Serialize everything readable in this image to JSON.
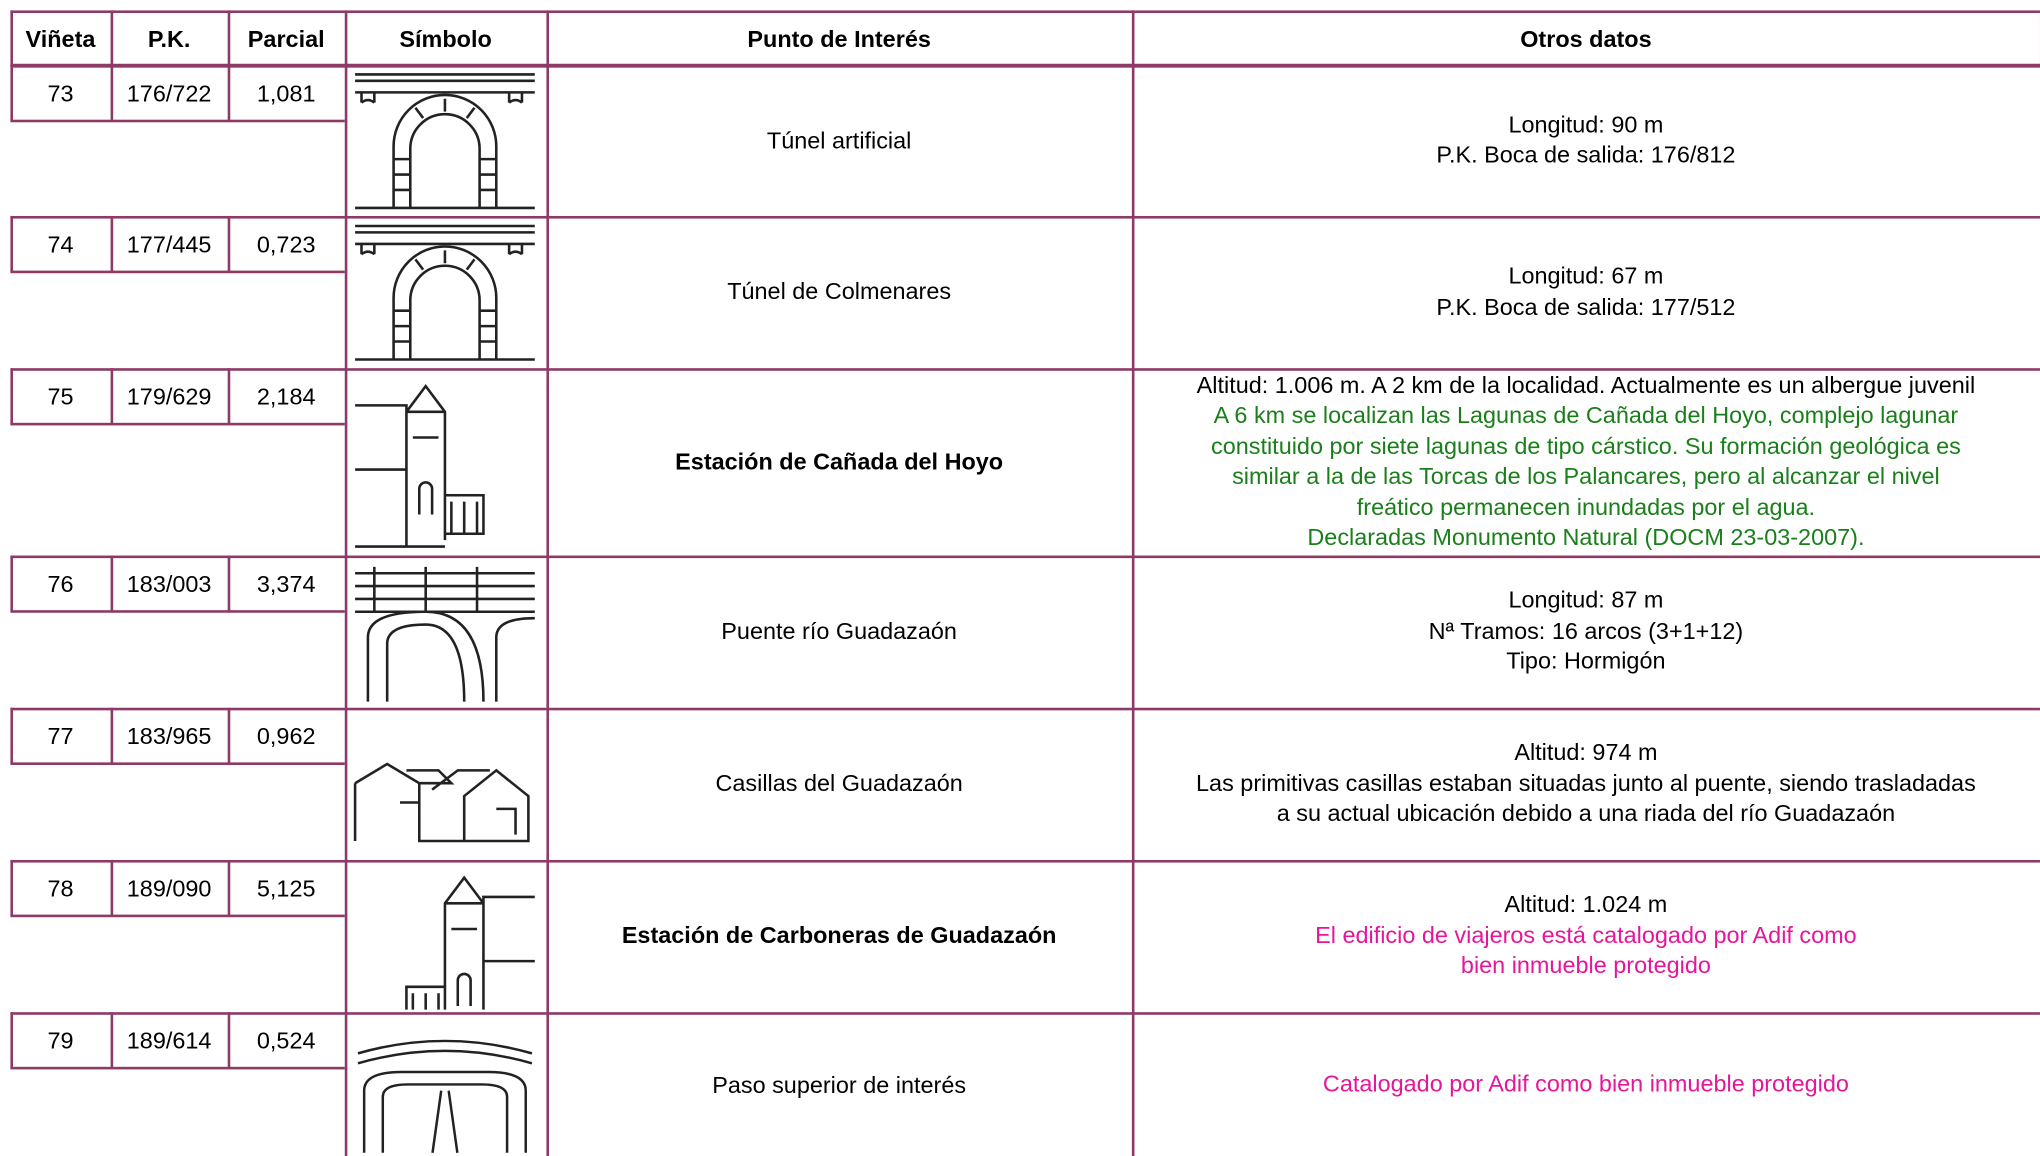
{
  "header": [
    "Viñeta",
    "P.K.",
    "Parcial",
    "Símbolo",
    "Punto de Interés",
    "Otros datos"
  ],
  "rows": [
    {
      "vineta": "73",
      "pk": "176/722",
      "parcial": "1,081",
      "punto": "Túnel artificial",
      "punto_bold": false,
      "otros": [
        {
          "text": "Longitud: 90 m",
          "color": "#000000"
        },
        {
          "text": "P.K. Boca de salida: 176/812",
          "color": "#000000"
        }
      ]
    },
    {
      "vineta": "74",
      "pk": "177/445",
      "parcial": "0,723",
      "punto": "Túnel de Colmenares",
      "punto_bold": false,
      "otros": [
        {
          "text": "Longitud: 67 m",
          "color": "#000000"
        },
        {
          "text": "P.K. Boca de salida: 177/512",
          "color": "#000000"
        }
      ]
    },
    {
      "vineta": "75",
      "pk": "179/629",
      "parcial": "2,184",
      "punto": "Estación de Cañada del Hoyo",
      "punto_bold": true,
      "otros": [
        {
          "text": "Altitud: 1.006 m. A 2 km de la localidad. Actualmente es un albergue juvenil",
          "color": "#000000"
        },
        {
          "text": "A 6 km se localizan las Lagunas de Cañada del Hoyo, complejo lagunar",
          "color": "#1a7f1a"
        },
        {
          "text": "constituido por siete lagunas de tipo cárstico. Su formación geológica es",
          "color": "#1a7f1a"
        },
        {
          "text": "similar a la de las Torcas de los Palancares, pero al alcanzar el nivel",
          "color": "#1a7f1a"
        },
        {
          "text": "freático permanecen inundadas por el agua.",
          "color": "#1a7f1a"
        },
        {
          "text": "Declaradas Monumento Natural (DOCM 23-03-2007).",
          "color": "#1a7f1a"
        }
      ]
    },
    {
      "vineta": "76",
      "pk": "183/003",
      "parcial": "3,374",
      "punto": "Puente río Guadazaón",
      "punto_bold": false,
      "otros": [
        {
          "text": "Longitud: 87 m",
          "color": "#000000"
        },
        {
          "text": "Nª Tramos: 16 arcos (3+1+12)",
          "color": "#000000"
        },
        {
          "text": "Tipo: Hormigón",
          "color": "#000000"
        }
      ]
    },
    {
      "vineta": "77",
      "pk": "183/965",
      "parcial": "0,962",
      "punto": "Casillas del Guadazaón",
      "punto_bold": false,
      "otros": [
        {
          "text": "Altitud: 974 m",
          "color": "#000000"
        },
        {
          "text": "Las primitivas casillas estaban situadas junto al puente, siendo trasladadas",
          "color": "#000000"
        },
        {
          "text": "a su actual ubicación debido a una riada del río Guadazaón",
          "color": "#000000"
        }
      ]
    },
    {
      "vineta": "78",
      "pk": "189/090",
      "parcial": "5,125",
      "punto": "Estación de Carboneras de Guadazaón",
      "punto_bold": true,
      "otros": [
        {
          "text": "Altitud: 1.024 m",
          "color": "#000000"
        },
        {
          "text": "El edificio de viajeros está catalogado por Adif como",
          "color": "#e6169b"
        },
        {
          "text": "bien inmueble protegido",
          "color": "#e6169b"
        }
      ]
    },
    {
      "vineta": "79",
      "pk": "189/614",
      "parcial": "0,524",
      "punto": "Paso superior de interés",
      "punto_bold": false,
      "otros": [
        {
          "text": "Catalogado por Adif como bien inmueble protegido",
          "color": "#e6169b"
        }
      ]
    }
  ]
}
